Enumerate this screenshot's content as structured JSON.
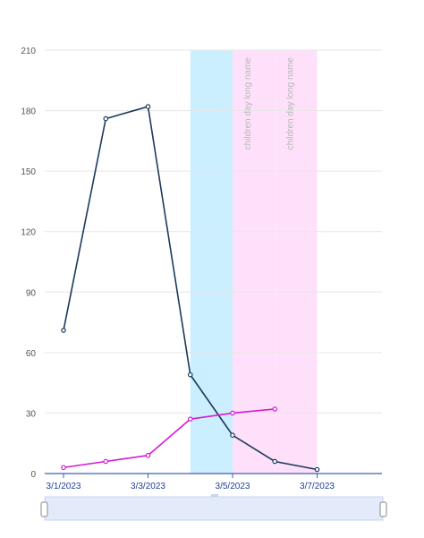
{
  "chart_data": {
    "type": "line",
    "x": [
      "3/1/2023",
      "3/2/2023",
      "3/3/2023",
      "3/4/2023",
      "3/5/2023",
      "3/6/2023",
      "3/7/2023"
    ],
    "x_tick_labels": [
      "3/1/2023",
      "3/3/2023",
      "3/5/2023",
      "3/7/2023"
    ],
    "y_ticks": [
      0,
      30,
      60,
      90,
      120,
      150,
      180,
      210
    ],
    "ylim": [
      0,
      210
    ],
    "grid": true,
    "series": [
      {
        "color": "#1b3a5c",
        "values": [
          71,
          176,
          182,
          49,
          19,
          6,
          2
        ]
      },
      {
        "color": "#d21ad2",
        "values": [
          3,
          6,
          9,
          27,
          30,
          32,
          null
        ]
      }
    ],
    "bands": [
      {
        "from": "3/4/2023",
        "to": "3/5/2023",
        "color": "#ccefff",
        "label": ""
      },
      {
        "from": "3/5/2023",
        "to": "3/6/2023",
        "color": "#ffe0fb",
        "label": "children day long name"
      },
      {
        "from": "3/6/2023",
        "to": "3/7/2023",
        "color": "#ffe0fb",
        "label": "children day long name"
      }
    ],
    "range_slider": true
  }
}
